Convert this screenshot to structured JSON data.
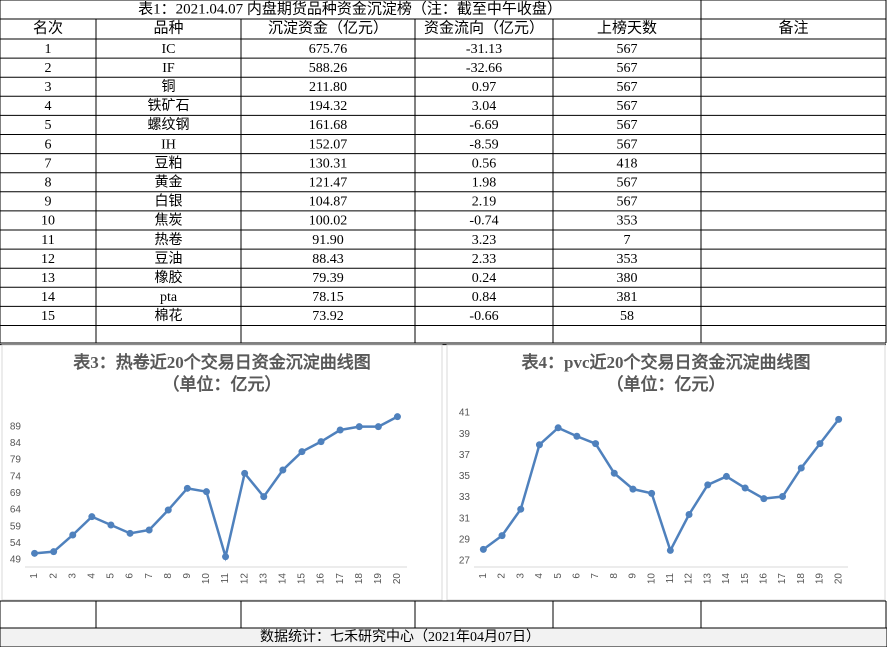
{
  "table": {
    "title": "表1：2021.04.07 内盘期货品种资金沉淀榜（注：截至中午收盘）",
    "header": [
      "名次",
      "品种",
      "沉淀资金（亿元）",
      "资金流向（亿元）",
      "上榜天数",
      "备注"
    ],
    "rows": [
      [
        "1",
        "IC",
        "675.76",
        "-31.13",
        "567"
      ],
      [
        "2",
        "IF",
        "588.26",
        "-32.66",
        "567"
      ],
      [
        "3",
        "铜",
        "211.80",
        "0.97",
        "567"
      ],
      [
        "4",
        "铁矿石",
        "194.32",
        "3.04",
        "567"
      ],
      [
        "5",
        "螺纹钢",
        "161.68",
        "-6.69",
        "567"
      ],
      [
        "6",
        "IH",
        "152.07",
        "-8.59",
        "567"
      ],
      [
        "7",
        "豆粕",
        "130.31",
        "0.56",
        "418"
      ],
      [
        "8",
        "黄金",
        "121.47",
        "1.98",
        "567"
      ],
      [
        "9",
        "白银",
        "104.87",
        "2.19",
        "567"
      ],
      [
        "10",
        "焦炭",
        "100.02",
        "-0.74",
        "353"
      ],
      [
        "11",
        "热卷",
        "91.90",
        "3.23",
        "7"
      ],
      [
        "12",
        "豆油",
        "88.43",
        "2.33",
        "353"
      ],
      [
        "13",
        "橡胶",
        "79.39",
        "0.24",
        "380"
      ],
      [
        "14",
        "pta",
        "78.15",
        "0.84",
        "381"
      ],
      [
        "15",
        "棉花",
        "73.92",
        "-0.66",
        "58"
      ]
    ]
  },
  "chart_data": [
    {
      "type": "line",
      "title": "表3：热卷近20个交易日资金沉淀曲线图",
      "subtitle": "（单位：亿元）",
      "color": "#4f81bd",
      "categories": [
        "1",
        "2",
        "3",
        "4",
        "5",
        "6",
        "7",
        "8",
        "9",
        "10",
        "11",
        "12",
        "13",
        "14",
        "15",
        "16",
        "17",
        "18",
        "19",
        "20"
      ],
      "values": [
        51,
        51.5,
        56.5,
        62,
        59.5,
        57,
        58,
        64,
        70.5,
        69.5,
        50,
        75,
        68,
        76,
        81.5,
        84.5,
        88,
        89,
        89,
        92
      ],
      "ylim": [
        49,
        94
      ],
      "yticks": [
        49,
        54,
        59,
        64,
        69,
        74,
        79,
        84,
        89
      ]
    },
    {
      "type": "line",
      "title": "表4：pvc近20个交易日资金沉淀曲线图",
      "subtitle": "（单位：亿元）",
      "color": "#4f81bd",
      "categories": [
        "1",
        "2",
        "3",
        "4",
        "5",
        "6",
        "7",
        "8",
        "9",
        "10",
        "11",
        "12",
        "13",
        "14",
        "15",
        "16",
        "17",
        "18",
        "19",
        "20"
      ],
      "values": [
        28.1,
        29.4,
        31.9,
        38,
        39.6,
        38.8,
        38.1,
        35.3,
        33.8,
        33.4,
        28,
        31.4,
        34.2,
        35,
        33.9,
        32.9,
        33.1,
        35.8,
        38.1,
        40.4
      ],
      "ylim": [
        27,
        41
      ],
      "yticks": [
        27,
        29,
        31,
        33,
        35,
        37,
        39,
        41
      ]
    }
  ],
  "footer": "数据统计：七禾研究中心（2021年04月07日）"
}
